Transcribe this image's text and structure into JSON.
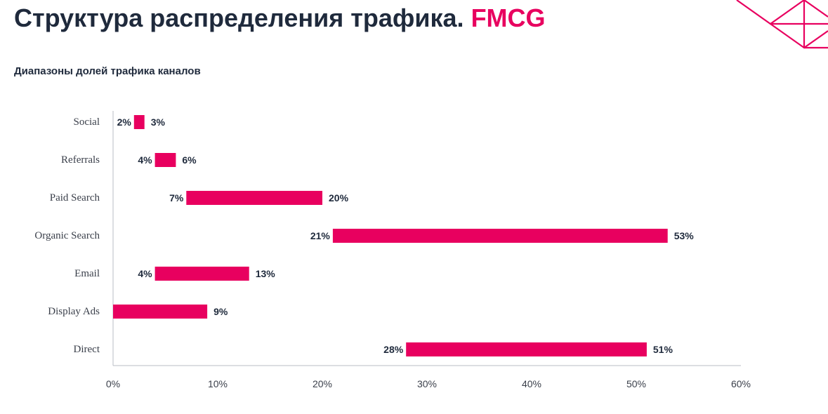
{
  "header": {
    "title_main": "Структура распределения трафика.",
    "title_accent": "FMCG",
    "subtitle": "Диапазоны долей трафика каналов"
  },
  "colors": {
    "accent": "#e8005f",
    "text": "#1f2a3c",
    "axis": "#b8bcc4"
  },
  "chart_data": {
    "type": "bar",
    "orientation": "horizontal",
    "subtype": "floating-range",
    "title": "Диапазоны долей трафика каналов",
    "xlabel": "",
    "ylabel": "",
    "xlim": [
      0,
      60
    ],
    "x_ticks": [
      "0%",
      "10%",
      "20%",
      "30%",
      "40%",
      "50%",
      "60%"
    ],
    "x_tick_values": [
      0,
      10,
      20,
      30,
      40,
      50,
      60
    ],
    "grid": false,
    "legend": "none",
    "categories": [
      "Social",
      "Referrals",
      "Paid Search",
      "Organic Search",
      "Email",
      "Display Ads",
      "Direct"
    ],
    "ranges": [
      {
        "min": 2,
        "max": 3,
        "min_label": "2%",
        "max_label": "3%"
      },
      {
        "min": 4,
        "max": 6,
        "min_label": "4%",
        "max_label": "6%"
      },
      {
        "min": 7,
        "max": 20,
        "min_label": "7%",
        "max_label": "20%"
      },
      {
        "min": 21,
        "max": 53,
        "min_label": "21%",
        "max_label": "53%"
      },
      {
        "min": 4,
        "max": 13,
        "min_label": "4%",
        "max_label": "13%"
      },
      {
        "min": 0,
        "max": 9,
        "min_label": "",
        "max_label": "9%"
      },
      {
        "min": 28,
        "max": 51,
        "min_label": "28%",
        "max_label": "51%"
      }
    ]
  }
}
